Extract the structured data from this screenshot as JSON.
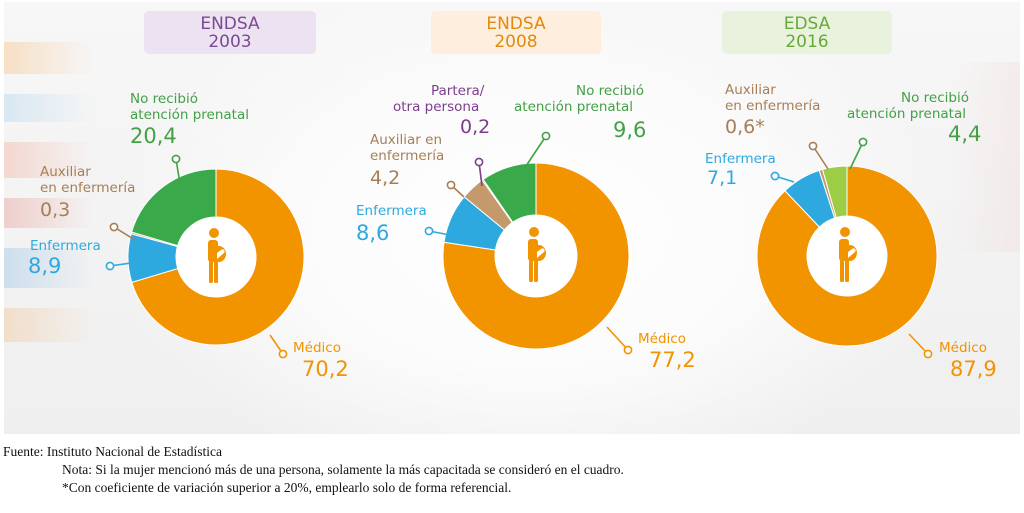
{
  "charts": [
    {
      "title_line1": "ENDSA",
      "title_line2": "2003",
      "title_color": "#7b4a93",
      "title_bg": "#ece2f1"
    },
    {
      "title_line1": "ENDSA",
      "title_line2": "2008",
      "title_color": "#e28a0b",
      "title_bg": "#fdeedd"
    },
    {
      "title_line1": "EDSA",
      "title_line2": "2016",
      "title_color": "#68a93b",
      "title_bg": "#e8f2dc"
    }
  ],
  "colors": {
    "medico": "#f29300",
    "enfermera": "#2ea9df",
    "auxiliar": "#c49a6c",
    "partera": "#7b3f8c",
    "no_recibio_2003": "#3aa94a",
    "no_recibio_2008": "#3aa94a",
    "no_recibio_2016": "#9ccd45",
    "green_label": "#43a047",
    "brown_label": "#a77f56"
  },
  "chart_data": [
    {
      "type": "pie",
      "title": "ENDSA 2003",
      "labels": [
        "Médico",
        "Enfermera",
        "Auxiliar en enfermería",
        "No recibió atención prenatal"
      ],
      "values": [
        70.2,
        8.9,
        0.3,
        20.4
      ],
      "value_labels": [
        "70,2",
        "8,9",
        "0,3",
        "20,4"
      ]
    },
    {
      "type": "pie",
      "title": "ENDSA 2008",
      "labels": [
        "Médico",
        "Enfermera",
        "Auxiliar en enfermería",
        "Partera/ otra persona",
        "No recibió atención prenatal"
      ],
      "values": [
        77.2,
        8.6,
        4.2,
        0.2,
        9.6
      ],
      "value_labels": [
        "77,2",
        "8,6",
        "4,2",
        "0,2",
        "9,6"
      ]
    },
    {
      "type": "pie",
      "title": "EDSA 2016",
      "labels": [
        "Médico",
        "Enfermera",
        "Auxiliar en enfermería",
        "No recibió atención prenatal"
      ],
      "values": [
        87.9,
        7.1,
        0.6,
        4.4
      ],
      "value_labels": [
        "87,9",
        "7,1",
        "0,6*",
        "4,4"
      ]
    }
  ],
  "labels": {
    "medico": "Médico",
    "enfermera": "Enfermera",
    "auxiliar_1": "Auxiliar",
    "auxiliar_2": "en enfermería",
    "auxiliar_en": "Auxiliar en",
    "enfermeria": "enfermería",
    "no_recibio_1": "No recibió",
    "no_recibio_2": "atención prenatal",
    "partera_1": "Partera/",
    "partera_2": "otra persona"
  },
  "footer": {
    "source": "Fuente: Instituto Nacional de Estadística",
    "note": "Nota: Si la mujer mencionó más de una persona, solamente la más capacitada se consideró en el cuadro.",
    "footnote": "*Con coeficiente de variación superior a 20%, emplearlo solo de forma referencial."
  }
}
